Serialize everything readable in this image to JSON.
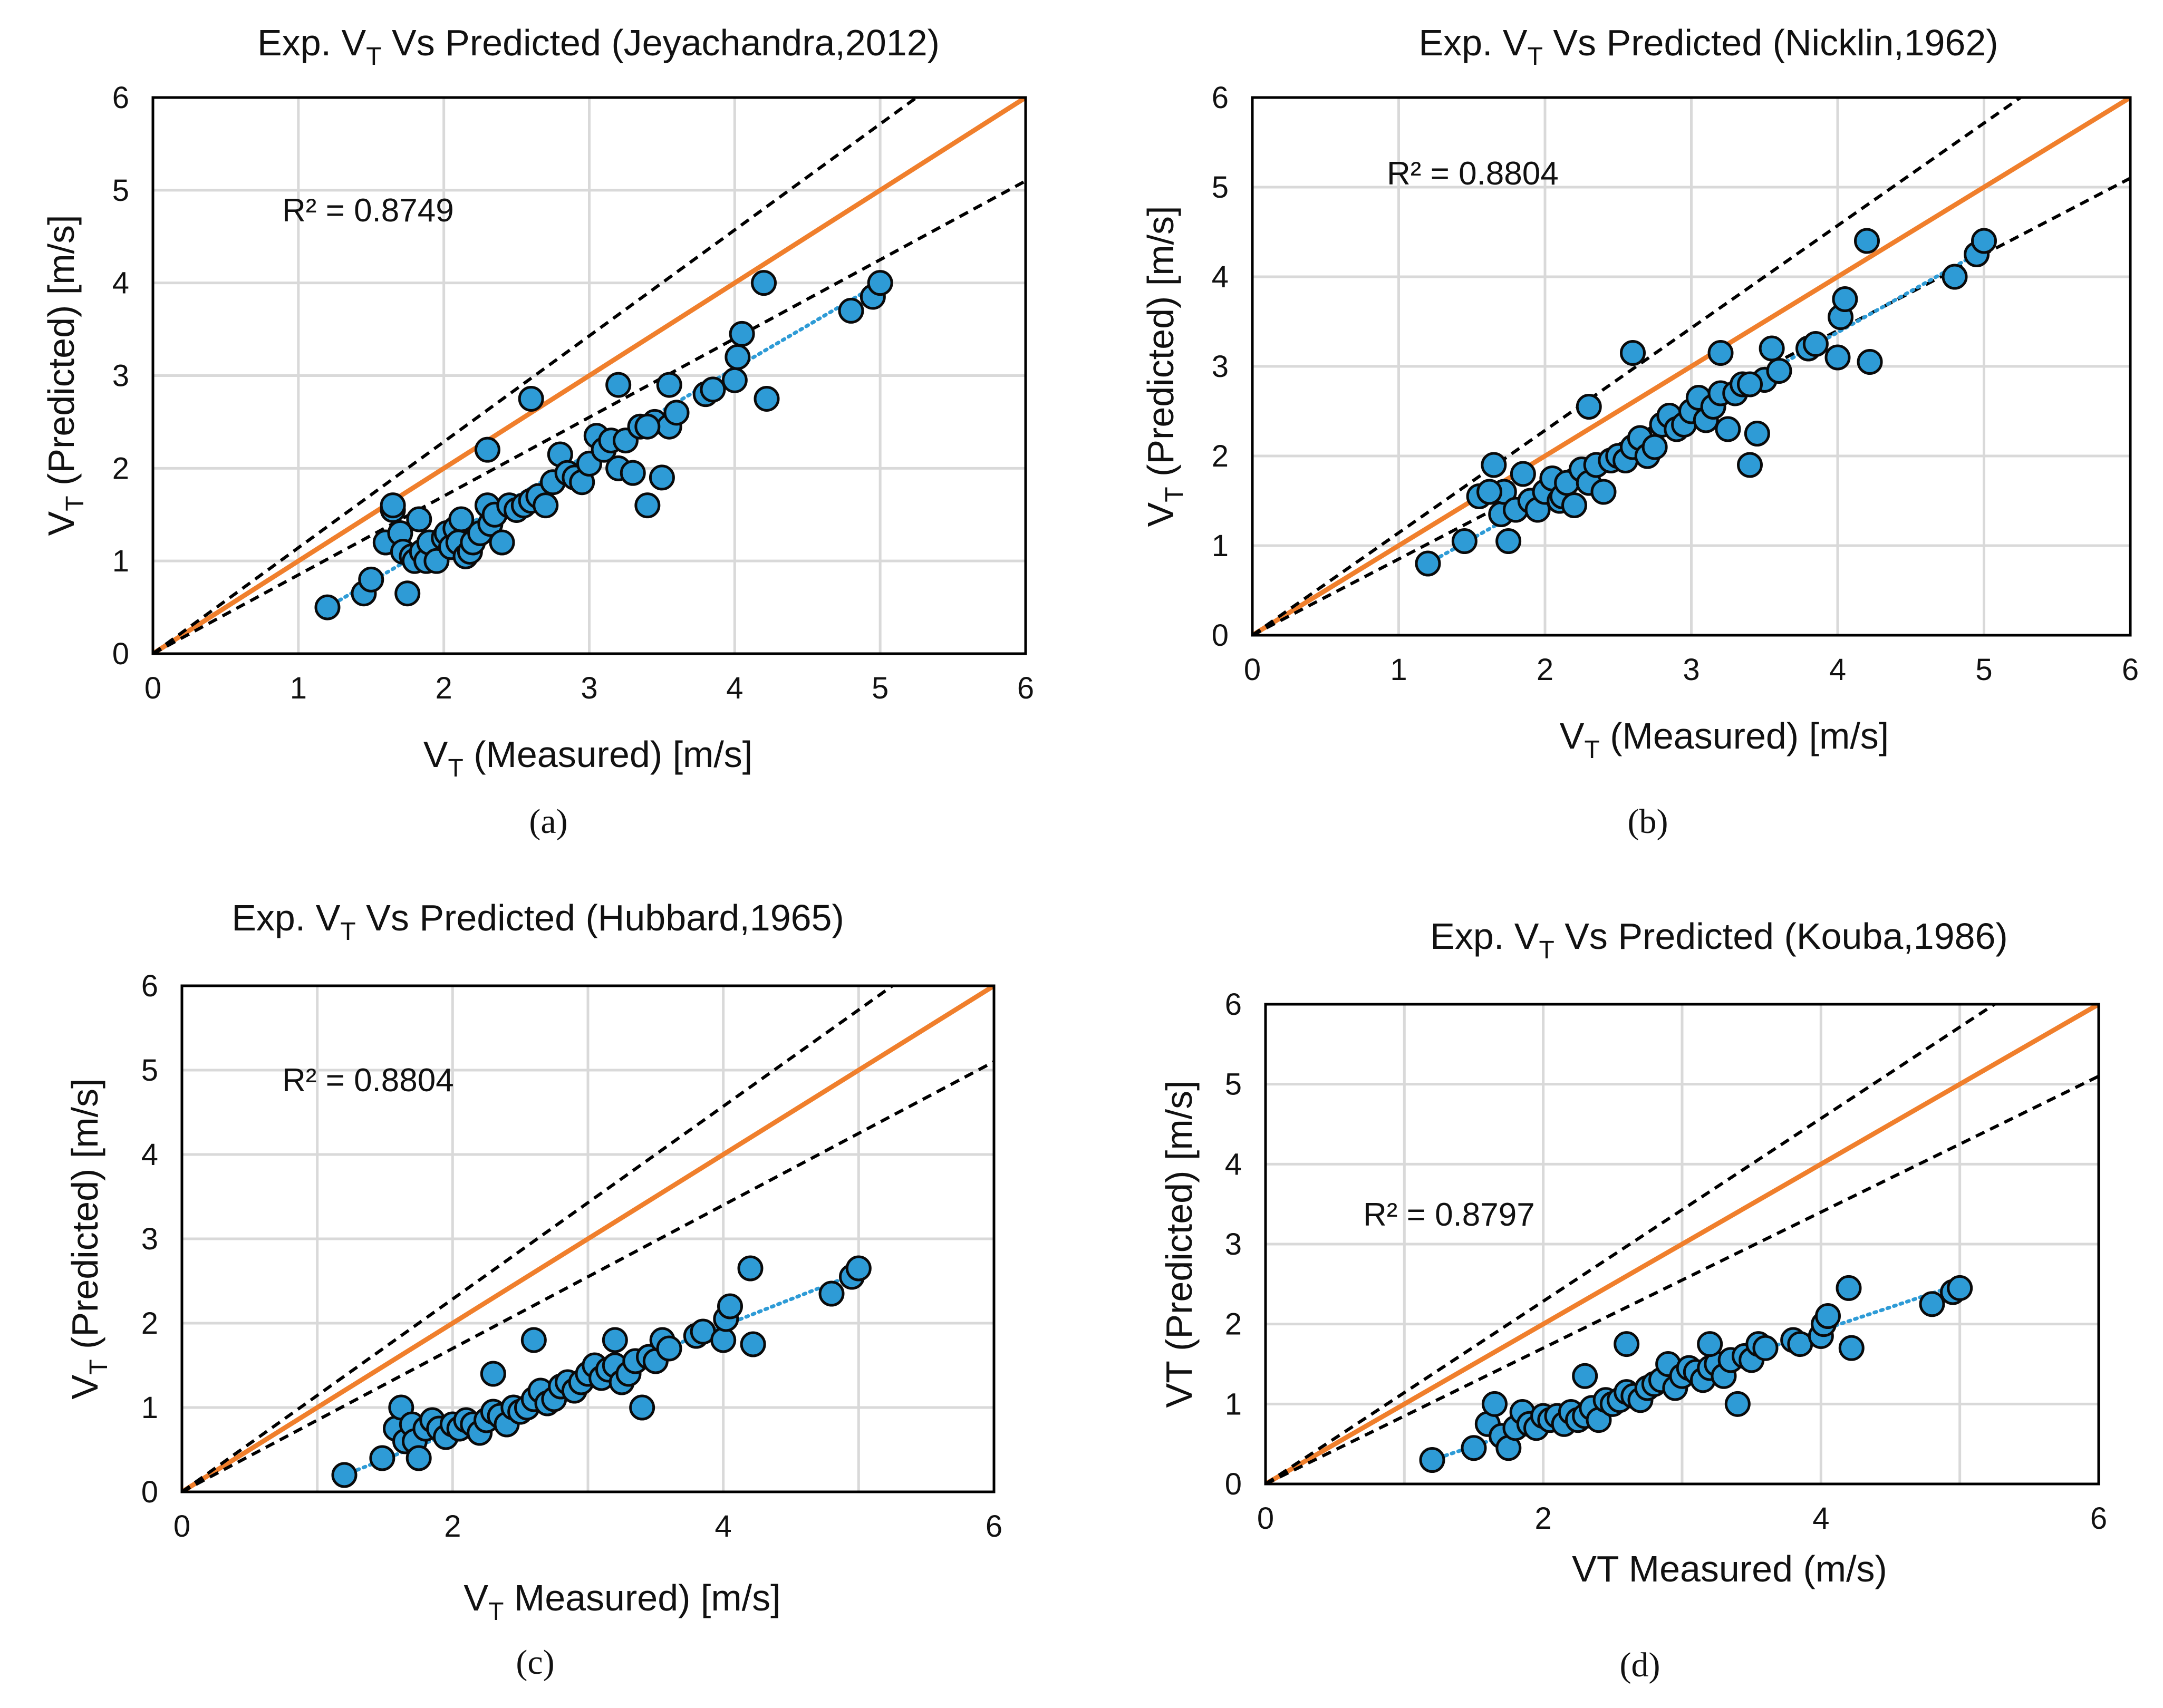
{
  "figure": {
    "panels": [
      {
        "id": "a",
        "caption": "(a)",
        "r2_label": "R² = 0.8749",
        "title": {
          "prefix": "Exp. V",
          "sub": "T",
          "suffix": " Vs Predicted (Jeyachandra,2012)"
        },
        "xlabel": {
          "prefix": "V",
          "sub": "T",
          "suffix": " (Measured) [m/s]"
        },
        "ylabel": {
          "prefix": "V",
          "sub": "T",
          "suffix": " (Predicted) [m/s]"
        },
        "xticks": [
          "0",
          "1",
          "2",
          "3",
          "4",
          "5",
          "6"
        ],
        "yticks": [
          "0",
          "1",
          "2",
          "3",
          "4",
          "5",
          "6"
        ]
      },
      {
        "id": "b",
        "caption": "(b)",
        "r2_label": "R² = 0.8804",
        "title": {
          "prefix": "Exp. V",
          "sub": "T",
          "suffix": " Vs Predicted (Nicklin,1962)"
        },
        "xlabel": {
          "prefix": "V",
          "sub": "T",
          "suffix": " (Measured) [m/s]"
        },
        "ylabel": {
          "prefix": "V",
          "sub": "T",
          "suffix": " (Predicted) [m/s]"
        },
        "xticks": [
          "0",
          "1",
          "2",
          "3",
          "4",
          "5",
          "6"
        ],
        "yticks": [
          "0",
          "1",
          "2",
          "3",
          "4",
          "5",
          "6"
        ]
      },
      {
        "id": "c",
        "caption": "(c)",
        "r2_label": "R² = 0.8804",
        "title": {
          "prefix": "Exp. V",
          "sub": "T",
          "suffix": "  Vs Predicted (Hubbard,1965)"
        },
        "xlabel": {
          "prefix": "V",
          "sub": "T",
          "suffix": " Measured) [m/s]"
        },
        "ylabel": {
          "prefix": "V",
          "sub": "T",
          "suffix": " (Predicted) [m/s]"
        },
        "xticks": [
          "0",
          "2",
          "4",
          "6"
        ],
        "yticks": [
          "0",
          "1",
          "2",
          "3",
          "4",
          "5",
          "6"
        ]
      },
      {
        "id": "d",
        "caption": "(d)",
        "r2_label": "R² = 0.8797",
        "title": {
          "prefix": "Exp. V",
          "sub": "T",
          "suffix": " Vs Predicted (Kouba,1986)"
        },
        "xlabel": {
          "prefix": "VT Measured (m/s)",
          "sub": "",
          "suffix": ""
        },
        "ylabel": {
          "prefix": "VT (Predicted) [m/s]",
          "sub": "",
          "suffix": ""
        },
        "xticks": [
          "0",
          "2",
          "4",
          "6"
        ],
        "yticks": [
          "0",
          "1",
          "2",
          "3",
          "4",
          "5",
          "6"
        ]
      }
    ]
  },
  "colors": {
    "marker": "#2e9bd6",
    "marker_edge": "#0a0a0a",
    "identity": "#f07f2c",
    "bounds": "#000000",
    "trend": "#2e9bd6",
    "grid": "#d9d9d9"
  },
  "chart_data": [
    {
      "type": "scatter",
      "title": "Exp. VT Vs Predicted (Jeyachandra,2012)",
      "xlabel": "VT (Measured) [m/s]",
      "ylabel": "VT (Predicted) [m/s]",
      "xlim": [
        0,
        6
      ],
      "ylim": [
        0,
        6
      ],
      "annotation": "R² = 0.8749",
      "lines": [
        {
          "name": "identity y=x",
          "style": "solid",
          "color": "#f07f2c",
          "x": [
            0,
            6
          ],
          "y": [
            0,
            6
          ]
        },
        {
          "name": "upper bound",
          "style": "dashed",
          "color": "#000000",
          "x": [
            0,
            5.25
          ],
          "y": [
            0,
            6
          ]
        },
        {
          "name": "lower bound",
          "style": "dashed",
          "color": "#000000",
          "x": [
            0,
            6
          ],
          "y": [
            0,
            5.1
          ]
        },
        {
          "name": "linear trend",
          "style": "dotted",
          "color": "#2e9bd6",
          "x": [
            1.2,
            5.0
          ],
          "y": [
            0.5,
            4.0
          ]
        }
      ],
      "x": [
        1.2,
        1.45,
        1.5,
        1.6,
        1.65,
        1.7,
        1.72,
        1.75,
        1.78,
        1.8,
        1.83,
        1.85,
        1.88,
        1.9,
        1.95,
        2.0,
        2.02,
        2.05,
        2.08,
        2.1,
        2.12,
        2.15,
        2.18,
        2.2,
        2.25,
        2.3,
        2.32,
        2.35,
        2.4,
        2.45,
        2.5,
        2.55,
        2.6,
        2.65,
        2.7,
        2.75,
        2.8,
        2.85,
        2.9,
        2.95,
        3.0,
        3.05,
        3.1,
        3.15,
        3.2,
        3.25,
        3.3,
        3.35,
        3.4,
        3.45,
        3.5,
        3.55,
        3.6,
        3.8,
        3.85,
        4.0,
        4.02,
        4.05,
        4.2,
        4.22,
        4.8,
        4.95,
        5.0,
        1.65,
        2.3,
        2.6,
        3.2,
        3.4,
        3.55
      ],
      "y": [
        0.5,
        0.65,
        0.8,
        1.2,
        1.55,
        1.3,
        1.1,
        0.65,
        1.05,
        1.0,
        1.45,
        1.1,
        1.0,
        1.2,
        1.0,
        1.25,
        1.3,
        1.15,
        1.35,
        1.2,
        1.45,
        1.05,
        1.1,
        1.2,
        1.3,
        1.6,
        1.4,
        1.5,
        1.2,
        1.6,
        1.55,
        1.6,
        1.65,
        1.7,
        1.6,
        1.85,
        2.15,
        1.95,
        1.9,
        1.85,
        2.05,
        2.35,
        2.2,
        2.3,
        2.0,
        2.3,
        1.95,
        2.45,
        1.6,
        2.5,
        1.9,
        2.45,
        2.6,
        2.8,
        2.85,
        2.95,
        3.2,
        3.45,
        4.0,
        2.75,
        3.7,
        3.85,
        4.0,
        1.6,
        2.2,
        2.75,
        2.9,
        2.45,
        2.9
      ]
    },
    {
      "type": "scatter",
      "title": "Exp. VT Vs Predicted (Nicklin,1962)",
      "xlabel": "VT (Measured) [m/s]",
      "ylabel": "VT (Predicted) [m/s]",
      "xlim": [
        0,
        6
      ],
      "ylim": [
        0,
        6
      ],
      "annotation": "R² = 0.8804",
      "lines": [
        {
          "name": "identity y=x",
          "style": "solid",
          "color": "#f07f2c",
          "x": [
            0,
            6
          ],
          "y": [
            0,
            6
          ]
        },
        {
          "name": "upper bound",
          "style": "dashed",
          "color": "#000000",
          "x": [
            0,
            5.25
          ],
          "y": [
            0,
            6
          ]
        },
        {
          "name": "lower bound",
          "style": "dashed",
          "color": "#000000",
          "x": [
            0,
            6
          ],
          "y": [
            0,
            5.1
          ]
        },
        {
          "name": "linear trend",
          "style": "dotted",
          "color": "#2e9bd6",
          "x": [
            1.2,
            5.0
          ],
          "y": [
            0.8,
            4.3
          ]
        }
      ],
      "x": [
        1.2,
        1.45,
        1.55,
        1.65,
        1.7,
        1.72,
        1.75,
        1.8,
        1.85,
        1.9,
        1.95,
        2.0,
        2.05,
        2.1,
        2.12,
        2.15,
        2.2,
        2.25,
        2.3,
        2.35,
        2.4,
        2.45,
        2.5,
        2.55,
        2.6,
        2.65,
        2.7,
        2.75,
        2.8,
        2.85,
        2.9,
        2.95,
        3.0,
        3.05,
        3.1,
        3.15,
        3.2,
        3.25,
        3.3,
        3.35,
        3.4,
        3.45,
        3.5,
        3.55,
        3.6,
        3.8,
        3.85,
        4.0,
        4.02,
        4.05,
        4.2,
        4.22,
        4.8,
        4.95,
        5.0,
        1.62,
        2.3,
        2.6,
        3.2,
        3.4
      ],
      "y": [
        0.8,
        1.05,
        1.55,
        1.9,
        1.35,
        1.6,
        1.05,
        1.4,
        1.8,
        1.5,
        1.4,
        1.6,
        1.75,
        1.5,
        1.55,
        1.7,
        1.45,
        1.85,
        1.7,
        1.9,
        1.6,
        1.95,
        2.0,
        1.95,
        2.1,
        2.2,
        2.0,
        2.1,
        2.35,
        2.45,
        2.3,
        2.35,
        2.5,
        2.65,
        2.4,
        2.55,
        2.7,
        2.3,
        2.7,
        2.8,
        1.9,
        2.25,
        2.85,
        3.2,
        2.95,
        3.2,
        3.25,
        3.1,
        3.55,
        3.75,
        4.4,
        3.05,
        4.0,
        4.25,
        4.4,
        1.6,
        2.55,
        3.15,
        3.15,
        2.8
      ]
    },
    {
      "type": "scatter",
      "title": "Exp. VT Vs Predicted (Hubbard,1965)",
      "xlabel": "VT Measured) [m/s]",
      "ylabel": "VT (Predicted) [m/s]",
      "xlim": [
        0,
        6
      ],
      "ylim": [
        0,
        6
      ],
      "annotation": "R² = 0.8804",
      "lines": [
        {
          "name": "identity y=x",
          "style": "solid",
          "color": "#f07f2c",
          "x": [
            0,
            6
          ],
          "y": [
            0,
            6
          ]
        },
        {
          "name": "upper bound",
          "style": "dashed",
          "color": "#000000",
          "x": [
            0,
            5.25
          ],
          "y": [
            0,
            6
          ]
        },
        {
          "name": "lower bound",
          "style": "dashed",
          "color": "#000000",
          "x": [
            0,
            6
          ],
          "y": [
            0,
            5.1
          ]
        },
        {
          "name": "linear trend",
          "style": "dotted",
          "color": "#2e9bd6",
          "x": [
            1.2,
            5.0
          ],
          "y": [
            0.2,
            2.6
          ]
        }
      ],
      "x": [
        1.2,
        1.48,
        1.58,
        1.62,
        1.65,
        1.7,
        1.72,
        1.75,
        1.8,
        1.85,
        1.9,
        1.95,
        2.0,
        2.05,
        2.1,
        2.15,
        2.2,
        2.25,
        2.3,
        2.35,
        2.4,
        2.45,
        2.5,
        2.55,
        2.6,
        2.65,
        2.7,
        2.75,
        2.8,
        2.85,
        2.9,
        2.95,
        3.0,
        3.05,
        3.1,
        3.15,
        3.2,
        3.25,
        3.3,
        3.35,
        3.4,
        3.45,
        3.5,
        3.55,
        3.6,
        3.8,
        3.85,
        4.0,
        4.02,
        4.05,
        4.2,
        4.22,
        4.8,
        4.95,
        5.0,
        2.3,
        2.6,
        3.2
      ],
      "y": [
        0.2,
        0.4,
        0.75,
        1.0,
        0.6,
        0.8,
        0.6,
        0.4,
        0.75,
        0.85,
        0.75,
        0.65,
        0.8,
        0.75,
        0.85,
        0.8,
        0.7,
        0.85,
        0.95,
        0.9,
        0.8,
        1.0,
        0.95,
        1.0,
        1.1,
        1.2,
        1.05,
        1.1,
        1.25,
        1.3,
        1.2,
        1.3,
        1.4,
        1.5,
        1.35,
        1.45,
        1.5,
        1.3,
        1.4,
        1.55,
        1.0,
        1.6,
        1.55,
        1.8,
        1.7,
        1.85,
        1.9,
        1.8,
        2.05,
        2.2,
        2.65,
        1.75,
        2.35,
        2.55,
        2.65,
        1.4,
        1.8,
        1.8
      ]
    },
    {
      "type": "scatter",
      "title": "Exp. VT Vs Predicted (Kouba,1986)",
      "xlabel": "VT Measured (m/s)",
      "ylabel": "VT (Predicted) [m/s]",
      "xlim": [
        0,
        6
      ],
      "ylim": [
        0,
        6
      ],
      "annotation": "R² = 0.8797",
      "lines": [
        {
          "name": "identity y=x",
          "style": "solid",
          "color": "#f07f2c",
          "x": [
            0,
            6
          ],
          "y": [
            0,
            6
          ]
        },
        {
          "name": "upper bound",
          "style": "dashed",
          "color": "#000000",
          "x": [
            0,
            5.25
          ],
          "y": [
            0,
            6
          ]
        },
        {
          "name": "lower bound",
          "style": "dashed",
          "color": "#000000",
          "x": [
            0,
            6
          ],
          "y": [
            0,
            5.1
          ]
        },
        {
          "name": "linear trend",
          "style": "dotted",
          "color": "#2e9bd6",
          "x": [
            1.2,
            5.0
          ],
          "y": [
            0.3,
            2.5
          ]
        }
      ],
      "x": [
        1.2,
        1.5,
        1.6,
        1.65,
        1.7,
        1.75,
        1.8,
        1.85,
        1.9,
        1.95,
        2.0,
        2.05,
        2.1,
        2.15,
        2.2,
        2.25,
        2.3,
        2.35,
        2.4,
        2.45,
        2.5,
        2.55,
        2.6,
        2.65,
        2.7,
        2.75,
        2.8,
        2.85,
        2.9,
        2.95,
        3.0,
        3.05,
        3.1,
        3.15,
        3.2,
        3.25,
        3.3,
        3.35,
        3.4,
        3.45,
        3.5,
        3.55,
        3.6,
        3.8,
        3.85,
        4.0,
        4.02,
        4.05,
        4.2,
        4.22,
        4.8,
        4.95,
        5.0,
        2.3,
        2.6,
        3.2
      ],
      "y": [
        0.3,
        0.45,
        0.75,
        1.0,
        0.6,
        0.45,
        0.7,
        0.9,
        0.75,
        0.7,
        0.85,
        0.8,
        0.85,
        0.75,
        0.9,
        0.8,
        0.85,
        0.95,
        0.8,
        1.05,
        1.0,
        1.05,
        1.15,
        1.1,
        1.05,
        1.2,
        1.25,
        1.3,
        1.5,
        1.2,
        1.35,
        1.45,
        1.4,
        1.3,
        1.45,
        1.5,
        1.35,
        1.55,
        1.0,
        1.6,
        1.55,
        1.75,
        1.7,
        1.8,
        1.75,
        1.85,
        2.0,
        2.1,
        2.45,
        1.7,
        2.25,
        2.4,
        2.45,
        1.35,
        1.75,
        1.75
      ]
    }
  ]
}
